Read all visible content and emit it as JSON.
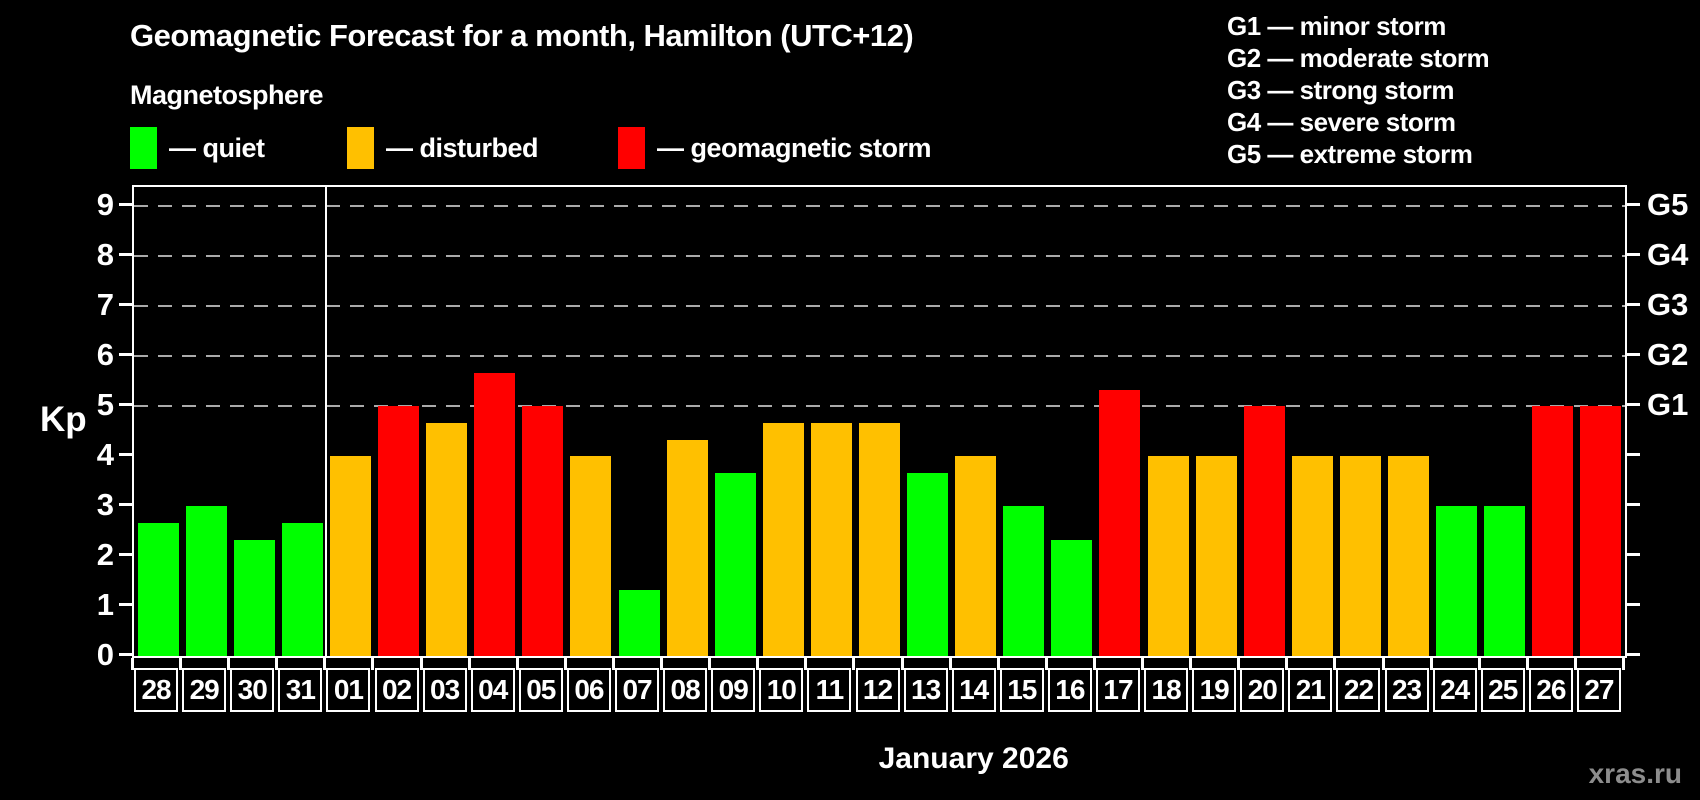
{
  "header": {
    "title": "Geomagnetic Forecast for a month, Hamilton (UTC+12)",
    "subtitle": "Magnetosphere"
  },
  "legend": {
    "items": [
      {
        "key": "quiet",
        "label": "— quiet"
      },
      {
        "key": "disturbed",
        "label": "— disturbed"
      },
      {
        "key": "storm",
        "label": "— geomagnetic storm"
      }
    ]
  },
  "g_legend": {
    "lines": [
      "G1 — minor storm",
      "G2 — moderate storm",
      "G3 — strong storm",
      "G4 — severe storm",
      "G5 — extreme storm"
    ]
  },
  "colors": {
    "quiet": "#00ff00",
    "disturbed": "#ffc000",
    "storm": "#ff0000",
    "background": "#000000",
    "grid": "#aaaaaa",
    "axis": "#ffffff",
    "watermark": "#8d8d8d"
  },
  "chart_data": {
    "type": "bar",
    "title": "Geomagnetic Forecast for a month, Hamilton (UTC+12)",
    "ylabel": "Kp",
    "xlabel": "January 2026",
    "ylim": [
      0,
      9
    ],
    "yticks": [
      0,
      1,
      2,
      3,
      4,
      5,
      6,
      7,
      8,
      9
    ],
    "gridlines_at": [
      5,
      6,
      7,
      8,
      9
    ],
    "grid": "dashed horizontal",
    "legend_position": "top",
    "right_axis": [
      {
        "kp": 5,
        "label": "G1"
      },
      {
        "kp": 6,
        "label": "G2"
      },
      {
        "kp": 7,
        "label": "G3"
      },
      {
        "kp": 8,
        "label": "G4"
      },
      {
        "kp": 9,
        "label": "G5"
      }
    ],
    "categories": [
      "28",
      "29",
      "30",
      "31",
      "01",
      "02",
      "03",
      "04",
      "05",
      "06",
      "07",
      "08",
      "09",
      "10",
      "11",
      "12",
      "13",
      "14",
      "15",
      "16",
      "17",
      "18",
      "19",
      "20",
      "21",
      "22",
      "23",
      "24",
      "25",
      "26",
      "27"
    ],
    "values": [
      2.67,
      3.0,
      2.33,
      2.67,
      4.0,
      5.0,
      4.67,
      5.67,
      5.0,
      4.0,
      1.33,
      4.33,
      3.67,
      4.67,
      4.67,
      4.67,
      3.67,
      4.0,
      3.0,
      2.33,
      5.33,
      4.0,
      4.0,
      5.0,
      4.0,
      4.0,
      4.0,
      3.0,
      3.0,
      5.0,
      5.0
    ],
    "classes": [
      "quiet",
      "quiet",
      "quiet",
      "quiet",
      "disturbed",
      "storm",
      "disturbed",
      "storm",
      "storm",
      "disturbed",
      "quiet",
      "disturbed",
      "quiet",
      "disturbed",
      "disturbed",
      "disturbed",
      "quiet",
      "disturbed",
      "quiet",
      "quiet",
      "storm",
      "disturbed",
      "disturbed",
      "storm",
      "disturbed",
      "disturbed",
      "disturbed",
      "quiet",
      "quiet",
      "storm",
      "storm"
    ],
    "month_separator_after_index": 3
  },
  "footer": {
    "month_label": "January 2026",
    "watermark": "xras.ru"
  }
}
